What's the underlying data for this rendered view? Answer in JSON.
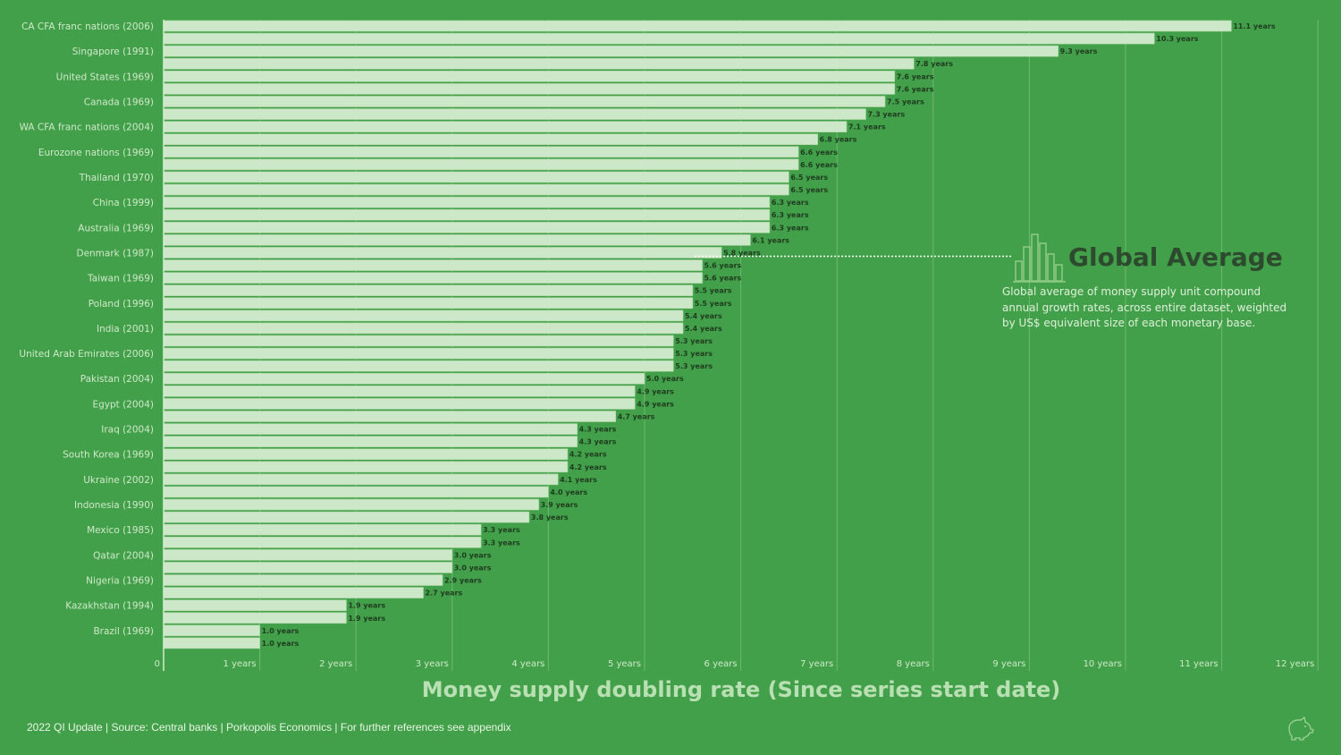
{
  "chart_data": {
    "type": "bar",
    "orientation": "horizontal",
    "xlabel": "Money supply doubling rate (Since series start date)",
    "x_ticks": [
      "0",
      "1 years",
      "2 years",
      "3 years",
      "4 years",
      "5 years",
      "6 years",
      "7 years",
      "8 years",
      "9 years",
      "10 years",
      "11 years",
      "12 years"
    ],
    "xlim": [
      0,
      12
    ],
    "grid": "vertical",
    "value_suffix": " years",
    "categories": [
      "CA CFA franc nations (2006)",
      "",
      "Singapore (1991)",
      "",
      "United States (1969)",
      "",
      "Canada (1969)",
      "",
      "WA CFA franc nations (2004)",
      "",
      "Eurozone nations (1969)",
      "",
      "Thailand (1970)",
      "",
      "China (1999)",
      "",
      "Australia (1969)",
      "",
      "Denmark (1987)",
      "",
      "Taiwan (1969)",
      "",
      "Poland (1996)",
      "",
      "India (2001)",
      "",
      "United Arab Emirates (2006)",
      "",
      "Pakistan (2004)",
      "",
      "Egypt (2004)",
      "",
      "Iraq (2004)",
      "",
      "South Korea (1969)",
      "",
      "Ukraine (2002)",
      "",
      "Indonesia (1990)",
      "",
      "Mexico (1985)",
      "",
      "Qatar (2004)",
      "",
      "Nigeria (1969)",
      "",
      "Kazakhstan (1994)",
      "",
      "Brazil (1969)",
      ""
    ],
    "values": [
      11.1,
      10.3,
      9.3,
      7.8,
      7.6,
      7.6,
      7.5,
      7.3,
      7.1,
      6.8,
      6.6,
      6.6,
      6.5,
      6.5,
      6.3,
      6.3,
      6.3,
      6.1,
      5.8,
      5.6,
      5.6,
      5.5,
      5.5,
      5.4,
      5.4,
      5.3,
      5.3,
      5.3,
      5.0,
      4.9,
      4.9,
      4.7,
      4.3,
      4.3,
      4.2,
      4.2,
      4.1,
      4.0,
      3.9,
      3.8,
      3.3,
      3.3,
      3.0,
      3.0,
      2.9,
      2.7,
      1.9,
      1.9,
      1.0,
      1.0
    ],
    "annotation": {
      "title": "Global Average",
      "description": "Global average of money supply unit compound annual growth rates, across entire dataset, weighted by US$ equivalent size of each monetary base.",
      "marker_row": 18
    },
    "colors": {
      "background": "#43a04a",
      "bar": "#cde8c8",
      "bar_stroke": "#a9d5a2",
      "grid": "#6fb86f",
      "annotation_title": "#2e4a2e",
      "dotted_line": "#ffffff"
    }
  },
  "footer": "2022 QI Update | Source: Central banks | Porkopolis Economics | For further references see appendix",
  "logo_icon": "pig-logo-icon"
}
